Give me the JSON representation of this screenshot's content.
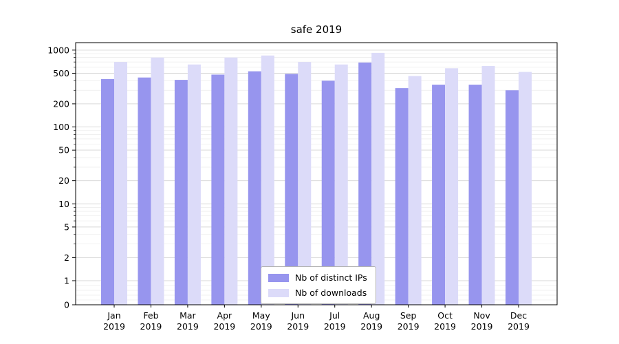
{
  "chart_data": {
    "type": "bar",
    "title": "safe 2019",
    "categories": [
      "Jan",
      "Feb",
      "Mar",
      "Apr",
      "May",
      "Jun",
      "Jul",
      "Aug",
      "Sep",
      "Oct",
      "Nov",
      "Dec"
    ],
    "category_year": "2019",
    "series": [
      {
        "name": "Nb of distinct IPs",
        "color": "#9795ee",
        "values": [
          420,
          440,
          410,
          480,
          530,
          490,
          400,
          690,
          320,
          355,
          355,
          300
        ]
      },
      {
        "name": "Nb of downloads",
        "color": "#dcdbf9",
        "values": [
          700,
          800,
          650,
          800,
          850,
          700,
          650,
          920,
          460,
          580,
          620,
          520
        ]
      }
    ],
    "yscale": "symlog",
    "yticks": [
      0,
      1,
      2,
      5,
      10,
      20,
      50,
      100,
      200,
      500,
      1000
    ],
    "ylim": [
      0,
      1250
    ],
    "grid": true,
    "legend_position": "lower center",
    "axis_color": "#000000",
    "grid_major_color": "#d9d9d9",
    "grid_minor_color": "#ececec"
  }
}
